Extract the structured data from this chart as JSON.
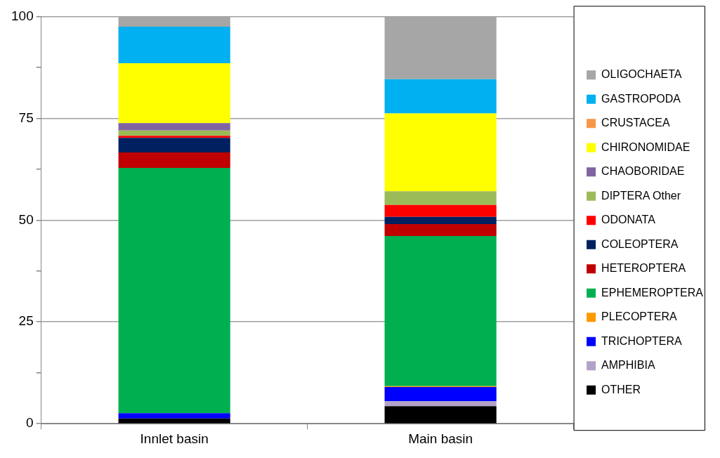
{
  "chart_data": {
    "type": "bar",
    "stacked": true,
    "categories": [
      "Innlet basin",
      "Main basin"
    ],
    "ylim": [
      0,
      100
    ],
    "yticks": [
      0,
      {
        "value": 12.5,
        "label": null
      },
      25,
      {
        "value": 37.5,
        "label": null
      },
      50,
      {
        "value": 62.5,
        "label": null
      },
      75,
      {
        "value": 87.5,
        "label": null
      },
      100
    ],
    "grid": "y",
    "legend": "right",
    "series": [
      {
        "name": "OTHER",
        "color": "#000000",
        "values": [
          1.3,
          4.3
        ]
      },
      {
        "name": "AMPHIBIA",
        "color": "#b3a2c7",
        "values": [
          0,
          1.2
        ]
      },
      {
        "name": "TRICHOPTERA",
        "color": "#0000ff",
        "values": [
          1.3,
          3.5
        ]
      },
      {
        "name": "PLECOPTERA",
        "color": "#ff9900",
        "values": [
          0,
          0.2
        ]
      },
      {
        "name": "EPHEMEROPTERA",
        "color": "#00b050",
        "values": [
          60.2,
          36.9
        ]
      },
      {
        "name": "HETEROPTERA",
        "color": "#c00000",
        "values": [
          3.8,
          2.9
        ]
      },
      {
        "name": "COLEOPTERA",
        "color": "#002060",
        "values": [
          3.6,
          1.8
        ]
      },
      {
        "name": "ODONATA",
        "color": "#ff0000",
        "values": [
          0.5,
          2.9
        ]
      },
      {
        "name": "DIPTERA Other",
        "color": "#9bbb59",
        "values": [
          1.3,
          3.4
        ]
      },
      {
        "name": "CHAOBORIDAE",
        "color": "#8064a2",
        "values": [
          1.8,
          0
        ]
      },
      {
        "name": "CHIRONOMIDAE",
        "color": "#ffff00",
        "values": [
          14.7,
          19.1
        ]
      },
      {
        "name": "CRUSTACEA",
        "color": "#f79646",
        "values": [
          0,
          0
        ]
      },
      {
        "name": "GASTROPODA",
        "color": "#00b0f0",
        "values": [
          9.0,
          8.4
        ]
      },
      {
        "name": "OLIGOCHAETA",
        "color": "#a6a6a6",
        "values": [
          2.5,
          15.4
        ]
      }
    ]
  }
}
